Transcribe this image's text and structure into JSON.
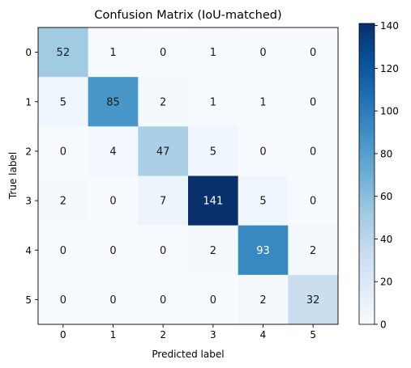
{
  "chart_data": {
    "type": "heatmap",
    "title": "Confusion Matrix (IoU-matched)",
    "xlabel": "Predicted label",
    "ylabel": "True label",
    "x_ticks": [
      "0",
      "1",
      "2",
      "3",
      "4",
      "5"
    ],
    "y_ticks": [
      "0",
      "1",
      "2",
      "3",
      "4",
      "5"
    ],
    "matrix": [
      [
        52,
        1,
        0,
        1,
        0,
        0
      ],
      [
        5,
        85,
        2,
        1,
        1,
        0
      ],
      [
        0,
        4,
        47,
        5,
        0,
        0
      ],
      [
        2,
        0,
        7,
        141,
        5,
        0
      ],
      [
        0,
        0,
        0,
        2,
        93,
        2
      ],
      [
        0,
        0,
        0,
        0,
        2,
        32
      ]
    ],
    "colormap": "Blues",
    "colorbar": {
      "range": [
        0,
        141
      ],
      "ticks": [
        "0",
        "20",
        "40",
        "60",
        "80",
        "100",
        "120",
        "140"
      ]
    }
  }
}
